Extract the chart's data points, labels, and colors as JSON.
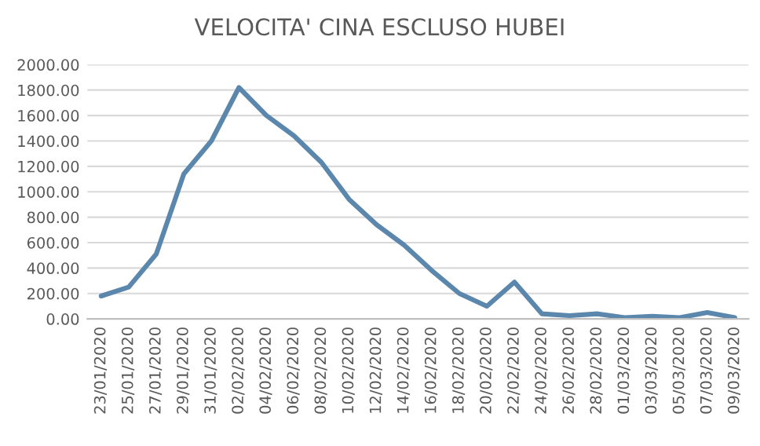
{
  "chart_data": {
    "type": "line",
    "title": "VELOCITA' CINA ESCLUSO HUBEI",
    "categories": [
      "23/01/2020",
      "25/01/2020",
      "27/01/2020",
      "29/01/2020",
      "31/01/2020",
      "02/02/2020",
      "04/02/2020",
      "06/02/2020",
      "08/02/2020",
      "10/02/2020",
      "12/02/2020",
      "14/02/2020",
      "16/02/2020",
      "18/02/2020",
      "20/02/2020",
      "22/02/2020",
      "24/02/2020",
      "26/02/2020",
      "28/02/2020",
      "01/03/2020",
      "03/03/2020",
      "05/03/2020",
      "07/03/2020",
      "09/03/2020"
    ],
    "series": [
      {
        "color": "#5b87ad",
        "values": [
          180,
          250,
          510,
          1140,
          1400,
          1820,
          1600,
          1440,
          1230,
          940,
          740,
          580,
          380,
          200,
          100,
          290,
          40,
          25,
          40,
          10,
          20,
          10,
          50,
          10
        ]
      }
    ],
    "ylim": [
      0,
      2000
    ],
    "yticks": [
      {
        "value": 0,
        "label": "0.00"
      },
      {
        "value": 200,
        "label": "200.00"
      },
      {
        "value": 400,
        "label": "400.00"
      },
      {
        "value": 600,
        "label": "600.00"
      },
      {
        "value": 800,
        "label": "800.00"
      },
      {
        "value": 1000,
        "label": "1000.00"
      },
      {
        "value": 1200,
        "label": "1200.00"
      },
      {
        "value": 1400,
        "label": "1400.00"
      },
      {
        "value": 1600,
        "label": "1600.00"
      },
      {
        "value": 1800,
        "label": "1800.00"
      },
      {
        "value": 2000,
        "label": "2000.00"
      }
    ],
    "grid": "y",
    "legend": false,
    "marker": "none",
    "line_style": "solid"
  }
}
